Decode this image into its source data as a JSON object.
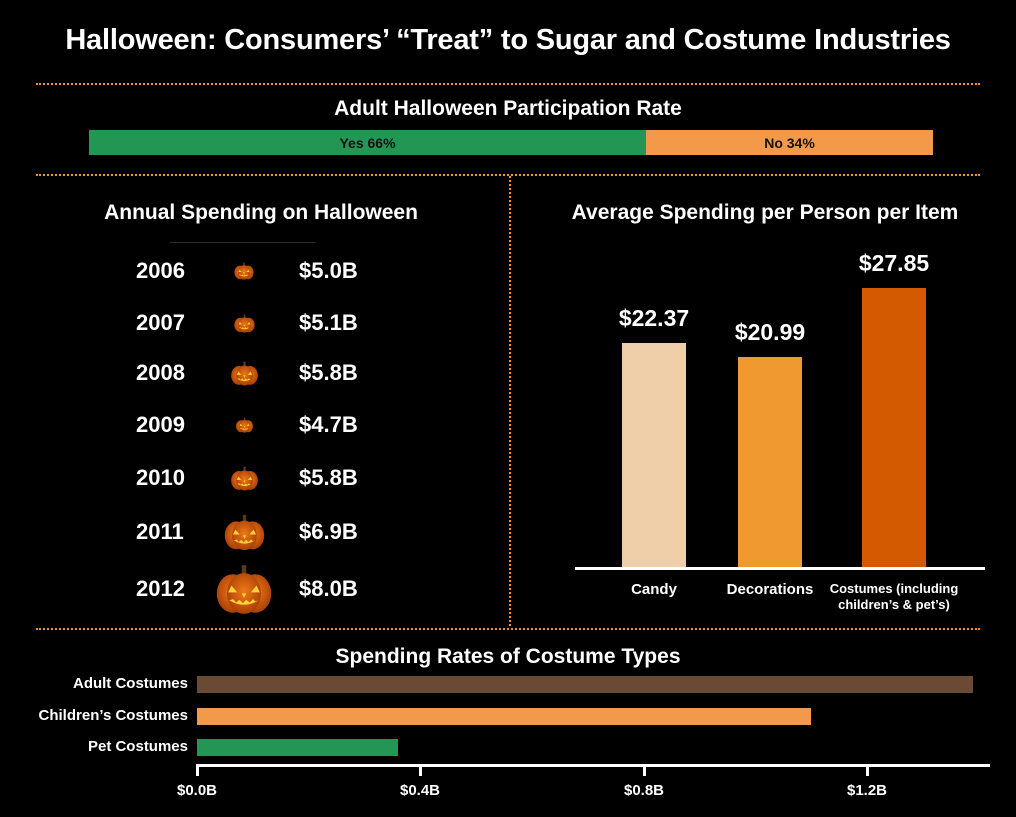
{
  "title": "Halloween: Consumers’ “Treat” to Sugar and Costume Industries",
  "participation": {
    "title": "Adult Halloween Participation Rate",
    "yes_label": "Yes 66%",
    "no_label": "No 34%",
    "yes_value": 66,
    "no_value": 34,
    "colors": {
      "yes": "#239653",
      "no": "#f3994a"
    }
  },
  "annual": {
    "title": "Annual Spending on Halloween",
    "rows": [
      {
        "year": "2006",
        "amount": "$5.0B"
      },
      {
        "year": "2007",
        "amount": "$5.1B"
      },
      {
        "year": "2008",
        "amount": "$5.8B"
      },
      {
        "year": "2009",
        "amount": "$4.7B"
      },
      {
        "year": "2010",
        "amount": "$5.8B"
      },
      {
        "year": "2011",
        "amount": "$6.9B"
      },
      {
        "year": "2012",
        "amount": "$8.0B"
      }
    ]
  },
  "per_person": {
    "title": "Average Spending per Person per Item",
    "value_labels": [
      "$22.37",
      "$20.99",
      "$27.85"
    ],
    "category_lines": [
      [
        "Candy"
      ],
      [
        "Decorations"
      ],
      [
        "Costumes (including",
        "children’s & pet’s)"
      ]
    ]
  },
  "costumes": {
    "title": "Spending Rates of Costume Types",
    "tick_labels": [
      "$0.0B",
      "$0.4B",
      "$0.8B",
      "$1.2B"
    ]
  },
  "chart_data": [
    {
      "type": "bar",
      "title": "Adult Halloween Participation Rate",
      "categories": [
        "Yes",
        "No"
      ],
      "values": [
        66,
        34
      ],
      "colors": [
        "#239653",
        "#f3994a"
      ]
    },
    {
      "type": "table",
      "title": "Annual Spending on Halloween",
      "x": [
        "2006",
        "2007",
        "2008",
        "2009",
        "2010",
        "2011",
        "2012"
      ],
      "values": [
        5.0,
        5.1,
        5.8,
        4.7,
        5.8,
        6.9,
        8.0
      ]
    },
    {
      "type": "bar",
      "title": "Average Spending per Person per Item",
      "categories": [
        "Candy",
        "Decorations",
        "Costumes (including children’s & pet’s)"
      ],
      "values": [
        22.37,
        20.99,
        27.85
      ],
      "colors": [
        "#eecfaa",
        "#f0992e",
        "#d45a00"
      ],
      "bar_scale_ymax": 36
    },
    {
      "type": "bar",
      "orientation": "horizontal",
      "title": "Spending Rates of Costume Types",
      "categories": [
        "Adult Costumes",
        "Children’s Costumes",
        "Pet Costumes"
      ],
      "values": [
        1.39,
        1.1,
        0.36
      ],
      "colors": [
        "#6a4a35",
        "#f3994a",
        "#239653"
      ],
      "xlim": [
        0,
        1.4
      ],
      "xticks": [
        0,
        0.4,
        0.8,
        1.2
      ]
    }
  ]
}
